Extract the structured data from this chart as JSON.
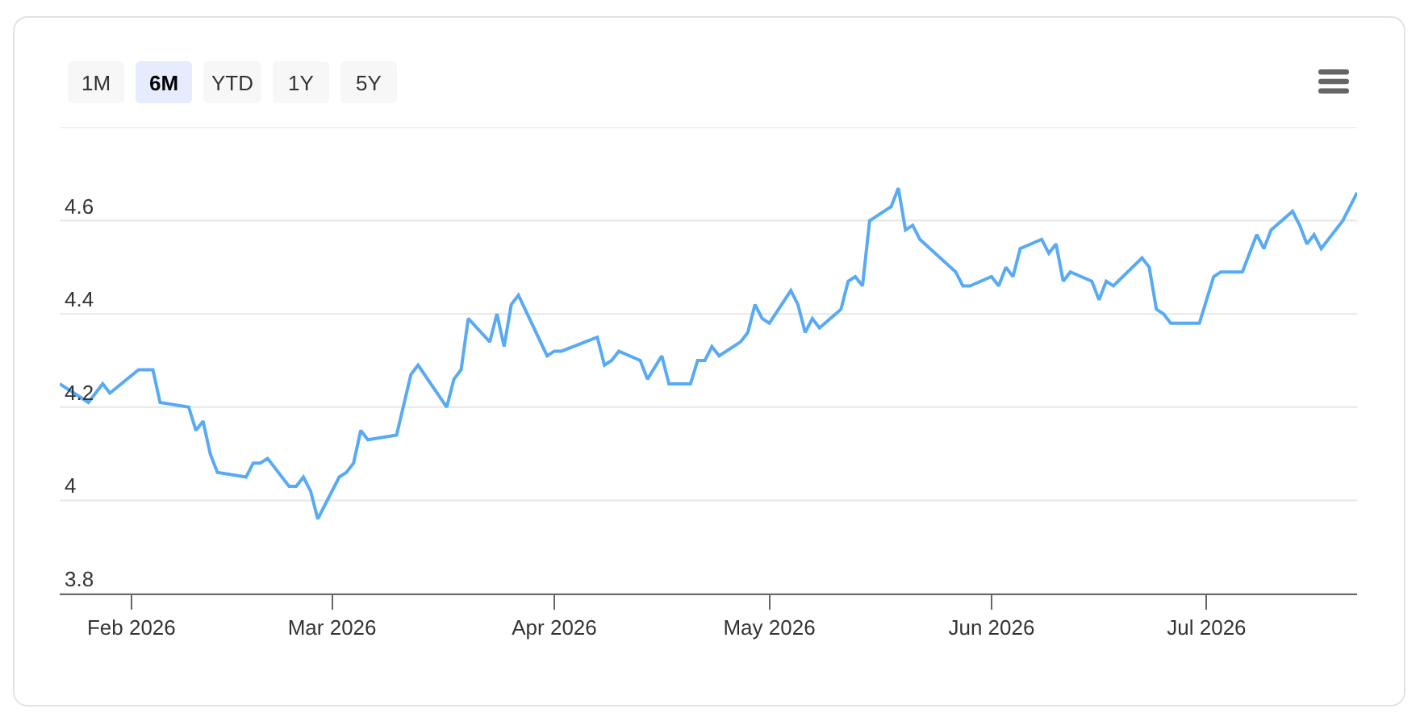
{
  "chart_data": {
    "type": "line",
    "annotations": [
      "1M",
      "6M",
      "YTD",
      "1Y",
      "5Y"
    ],
    "x": [
      "2026-01-22",
      "2026-01-26",
      "2026-01-27",
      "2026-01-28",
      "2026-01-29",
      "2026-02-02",
      "2026-02-04",
      "2026-02-05",
      "2026-02-09",
      "2026-02-10",
      "2026-02-11",
      "2026-02-12",
      "2026-02-13",
      "2026-02-17",
      "2026-02-18",
      "2026-02-19",
      "2026-02-20",
      "2026-02-23",
      "2026-02-24",
      "2026-02-25",
      "2026-02-26",
      "2026-02-27",
      "2026-03-02",
      "2026-03-03",
      "2026-03-04",
      "2026-03-05",
      "2026-03-06",
      "2026-03-10",
      "2026-03-12",
      "2026-03-13",
      "2026-03-17",
      "2026-03-18",
      "2026-03-19",
      "2026-03-20",
      "2026-03-23",
      "2026-03-24",
      "2026-03-25",
      "2026-03-26",
      "2026-03-27",
      "2026-03-31",
      "2026-04-01",
      "2026-04-02",
      "2026-04-07",
      "2026-04-08",
      "2026-04-09",
      "2026-04-10",
      "2026-04-13",
      "2026-04-14",
      "2026-04-16",
      "2026-04-17",
      "2026-04-20",
      "2026-04-21",
      "2026-04-22",
      "2026-04-23",
      "2026-04-24",
      "2026-04-27",
      "2026-04-28",
      "2026-04-29",
      "2026-04-30",
      "2026-05-01",
      "2026-05-04",
      "2026-05-05",
      "2026-05-06",
      "2026-05-07",
      "2026-05-08",
      "2026-05-11",
      "2026-05-12",
      "2026-05-13",
      "2026-05-14",
      "2026-05-15",
      "2026-05-18",
      "2026-05-19",
      "2026-05-20",
      "2026-05-21",
      "2026-05-22",
      "2026-05-27",
      "2026-05-28",
      "2026-05-29",
      "2026-06-01",
      "2026-06-02",
      "2026-06-03",
      "2026-06-04",
      "2026-06-05",
      "2026-06-08",
      "2026-06-09",
      "2026-06-10",
      "2026-06-11",
      "2026-06-12",
      "2026-06-15",
      "2026-06-16",
      "2026-06-17",
      "2026-06-18",
      "2026-06-22",
      "2026-06-23",
      "2026-06-24",
      "2026-06-25",
      "2026-06-26",
      "2026-06-30",
      "2026-07-02",
      "2026-07-03",
      "2026-07-06",
      "2026-07-07",
      "2026-07-08",
      "2026-07-09",
      "2026-07-10",
      "2026-07-13",
      "2026-07-14",
      "2026-07-15",
      "2026-07-16",
      "2026-07-17",
      "2026-07-20",
      "2026-07-22"
    ],
    "values": [
      4.25,
      4.21,
      4.23,
      4.25,
      4.23,
      4.28,
      4.28,
      4.21,
      4.2,
      4.15,
      4.17,
      4.1,
      4.06,
      4.05,
      4.08,
      4.08,
      4.09,
      4.03,
      4.03,
      4.05,
      4.02,
      3.96,
      4.05,
      4.06,
      4.08,
      4.15,
      4.13,
      4.14,
      4.27,
      4.29,
      4.2,
      4.26,
      4.28,
      4.39,
      4.34,
      4.4,
      4.33,
      4.42,
      4.44,
      4.31,
      4.32,
      4.32,
      4.35,
      4.29,
      4.3,
      4.32,
      4.3,
      4.26,
      4.31,
      4.25,
      4.25,
      4.3,
      4.3,
      4.33,
      4.31,
      4.34,
      4.36,
      4.42,
      4.39,
      4.38,
      4.45,
      4.42,
      4.36,
      4.39,
      4.37,
      4.41,
      4.47,
      4.48,
      4.46,
      4.6,
      4.63,
      4.67,
      4.58,
      4.59,
      4.56,
      4.49,
      4.46,
      4.46,
      4.48,
      4.46,
      4.5,
      4.48,
      4.54,
      4.56,
      4.53,
      4.55,
      4.47,
      4.49,
      4.47,
      4.43,
      4.47,
      4.46,
      4.52,
      4.5,
      4.41,
      4.4,
      4.38,
      4.38,
      4.48,
      4.49,
      4.49,
      4.53,
      4.57,
      4.54,
      4.58,
      4.62,
      4.59,
      4.55,
      4.57,
      4.54,
      4.6,
      4.66
    ],
    "color": "#58aaf5",
    "xlim": [
      "2026-01-22",
      "2026-07-22"
    ],
    "xticks": [
      {
        "value": "2026-02-01",
        "label": "Feb 2026"
      },
      {
        "value": "2026-03-01",
        "label": "Mar 2026"
      },
      {
        "value": "2026-04-01",
        "label": "Apr 2026"
      },
      {
        "value": "2026-05-01",
        "label": "May 2026"
      },
      {
        "value": "2026-06-01",
        "label": "Jun 2026"
      },
      {
        "value": "2026-07-01",
        "label": "Jul 2026"
      }
    ],
    "ylim": [
      3.8,
      4.8
    ],
    "yticks": [
      3.8,
      4,
      4.2,
      4.4,
      4.6,
      {
        "value": 4.8,
        "label": null
      }
    ],
    "grid": "y"
  }
}
